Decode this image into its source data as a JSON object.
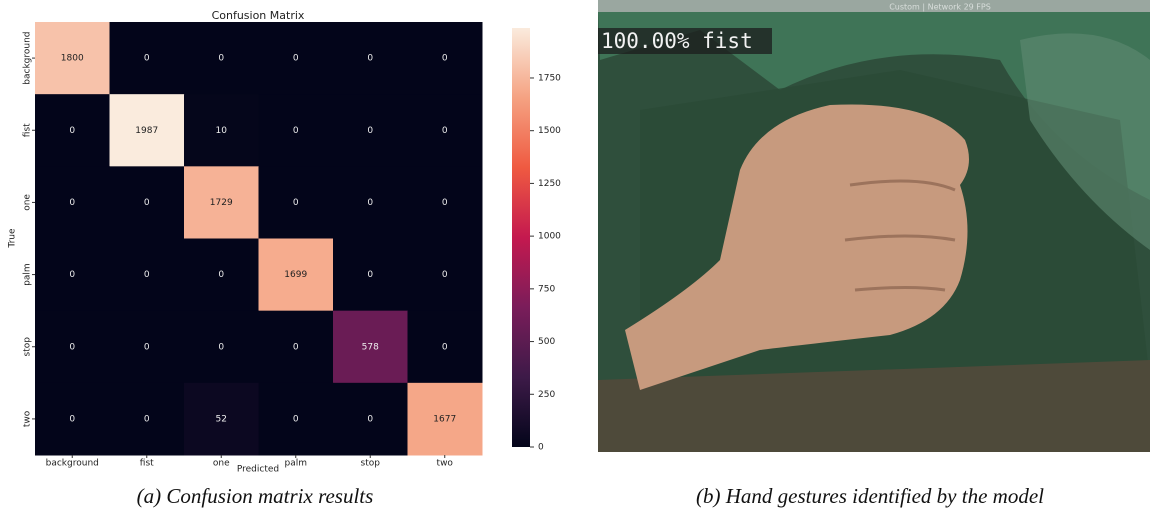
{
  "chart_data": {
    "type": "heatmap",
    "title": "Confusion Matrix",
    "x_label": "Predicted",
    "y_label": "True",
    "x_categories": [
      "background",
      "fist",
      "one",
      "palm",
      "stop",
      "two"
    ],
    "y_categories": [
      "background",
      "fist",
      "one",
      "palm",
      "stop",
      "two"
    ],
    "values": [
      [
        1800,
        0,
        0,
        0,
        0,
        0
      ],
      [
        0,
        1987,
        10,
        0,
        0,
        0
      ],
      [
        0,
        0,
        1729,
        0,
        0,
        0
      ],
      [
        0,
        0,
        0,
        1699,
        0,
        0
      ],
      [
        0,
        0,
        0,
        0,
        578,
        0
      ],
      [
        0,
        0,
        52,
        0,
        0,
        1677
      ]
    ],
    "clim": [
      0,
      1987
    ],
    "cticks": [
      0,
      250,
      500,
      750,
      1000,
      1250,
      1500,
      1750
    ],
    "colorscale": [
      "#03051a",
      "#3d1a48",
      "#7a1d5a",
      "#c4194f",
      "#ef5a41",
      "#f5a282",
      "#faebdd"
    ]
  },
  "photo": {
    "window_title": "Custom | Network 29 FPS",
    "prediction": "100.00% fist"
  },
  "captions": [
    "(a) Confusion matrix results",
    "(b) Hand gestures identified by the model"
  ]
}
